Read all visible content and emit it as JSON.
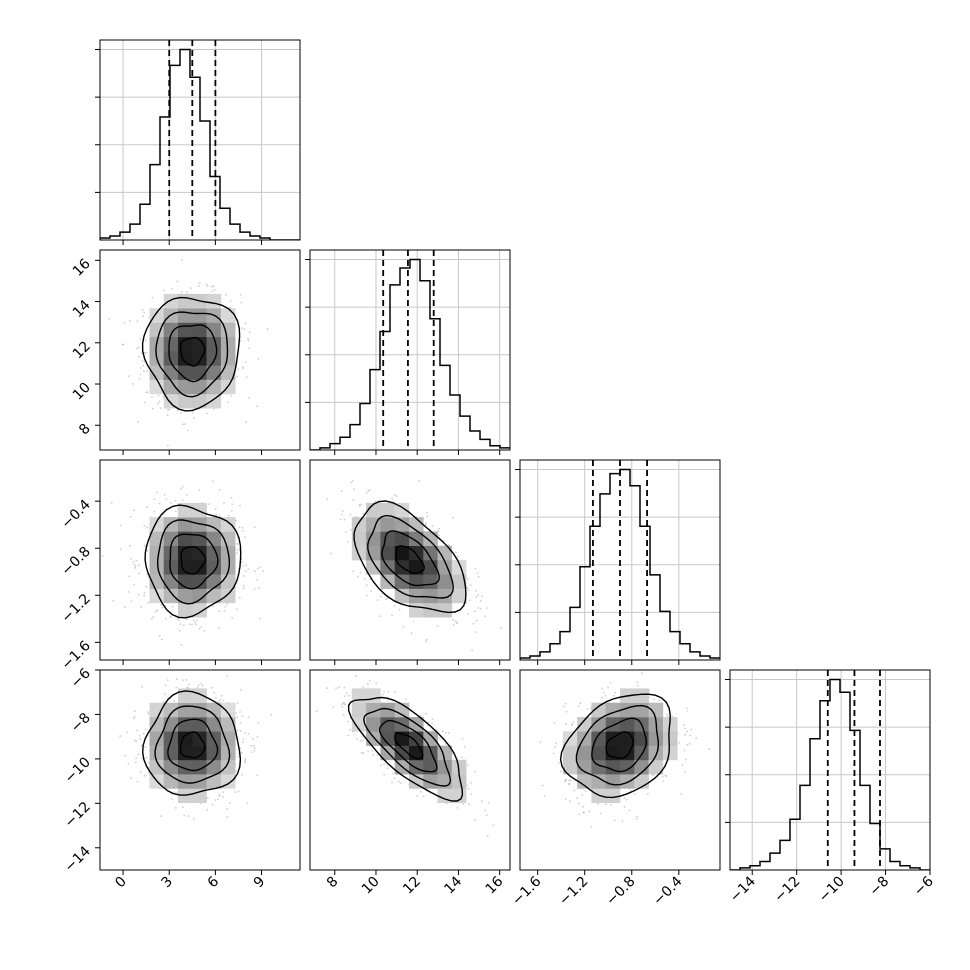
{
  "chart_data": {
    "type": "corner",
    "title": "",
    "grid": true,
    "parameters": [
      {
        "range": [
          -1.5,
          11.5
        ],
        "ticks": [
          0,
          3,
          6,
          9
        ],
        "tick_labels": [
          "0",
          "3",
          "6",
          "9"
        ],
        "quantiles": [
          3.0,
          4.5,
          6.0
        ],
        "hist": {
          "start": -1.5,
          "bin_width": 0.65,
          "values": [
            1,
            2,
            4,
            8,
            18,
            38,
            62,
            88,
            96,
            82,
            60,
            32,
            16,
            8,
            4,
            2,
            1,
            0,
            0,
            0
          ]
        }
      },
      {
        "range": [
          6.8,
          16.5
        ],
        "ticks": [
          8,
          10,
          12,
          14,
          16
        ],
        "tick_labels": [
          "8",
          "10",
          "12",
          "14",
          "16"
        ],
        "quantiles": [
          10.35,
          11.55,
          12.8
        ],
        "hist": {
          "start": 6.8,
          "bin_width": 0.485,
          "values": [
            0,
            1,
            3,
            6,
            12,
            22,
            38,
            56,
            78,
            86,
            90,
            80,
            62,
            40,
            26,
            16,
            9,
            5,
            2,
            1
          ]
        }
      },
      {
        "range": [
          -1.75,
          -0.05
        ],
        "ticks": [
          -1.6,
          -1.2,
          -0.8,
          -0.4
        ],
        "tick_labels": [
          "−1.6",
          "−1.2",
          "−0.8",
          "−0.4"
        ],
        "quantiles": [
          -1.13,
          -0.9,
          -0.67
        ],
        "hist": {
          "start": -1.75,
          "bin_width": 0.085,
          "values": [
            1,
            2,
            4,
            8,
            14,
            26,
            46,
            66,
            82,
            92,
            94,
            86,
            66,
            42,
            24,
            14,
            8,
            4,
            2,
            1
          ]
        }
      },
      {
        "range": [
          -15,
          -6
        ],
        "ticks": [
          -14,
          -12,
          -10,
          -8,
          -6
        ],
        "tick_labels": [
          "−14",
          "−12",
          "−10",
          "−8",
          "−6"
        ],
        "quantiles": [
          -10.6,
          -9.4,
          -8.25
        ],
        "hist": {
          "start": -15,
          "bin_width": 0.45,
          "values": [
            0,
            1,
            2,
            4,
            8,
            14,
            24,
            40,
            62,
            80,
            90,
            84,
            66,
            40,
            22,
            10,
            4,
            2,
            1,
            0
          ]
        }
      }
    ],
    "pairs": [
      {
        "x": 0,
        "y": 1,
        "mean": [
          4.5,
          11.6
        ],
        "sd": [
          1.55,
          1.35
        ],
        "corr": 0.0
      },
      {
        "x": 0,
        "y": 2,
        "mean": [
          4.5,
          -0.9
        ],
        "sd": [
          1.55,
          0.23
        ],
        "corr": 0.0
      },
      {
        "x": 1,
        "y": 2,
        "mean": [
          11.6,
          -0.9
        ],
        "sd": [
          1.35,
          0.23
        ],
        "corr": -0.5
      },
      {
        "x": 0,
        "y": 3,
        "mean": [
          4.5,
          -9.4
        ],
        "sd": [
          1.55,
          1.15
        ],
        "corr": 0.0
      },
      {
        "x": 1,
        "y": 3,
        "mean": [
          11.6,
          -9.4
        ],
        "sd": [
          1.35,
          1.15
        ],
        "corr": -0.72
      },
      {
        "x": 2,
        "y": 3,
        "mean": [
          -0.9,
          -9.4
        ],
        "sd": [
          0.23,
          1.15
        ],
        "corr": 0.25
      }
    ],
    "contour_levels_sigma": [
      0.5,
      1.0,
      1.5,
      2.0
    ],
    "line_color": "#000000",
    "scatter_color": "#9e9e9e",
    "grid_color": "#c8c8c8"
  }
}
